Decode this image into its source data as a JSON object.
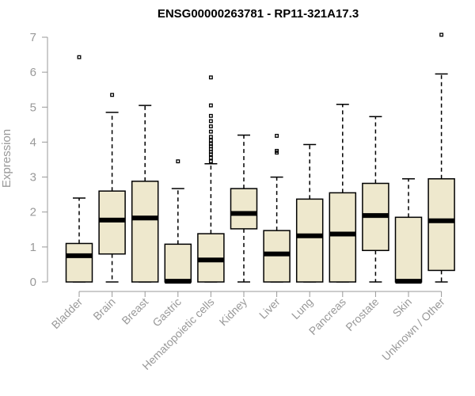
{
  "chart_data": {
    "type": "boxplot",
    "title": "ENSG00000263781 - RP11-321A17.3",
    "xlabel": "",
    "ylabel": "Expression",
    "ylim": [
      0,
      7
    ],
    "yticks": [
      0,
      1,
      2,
      3,
      4,
      5,
      6,
      7
    ],
    "colors": {
      "box_fill": "#EEE8CD",
      "axis": "#999999"
    },
    "categories": [
      "Bladder",
      "Brain",
      "Breast",
      "Gastric",
      "Hematopoietic cells",
      "Kidney",
      "Liver",
      "Lung",
      "Pancreas",
      "Prostate",
      "Skin",
      "Unknown / Other"
    ],
    "boxes": [
      {
        "label": "Bladder",
        "min": 0,
        "q1": 0,
        "median": 0.75,
        "q3": 1.1,
        "max": 2.4,
        "outliers": [
          6.43
        ]
      },
      {
        "label": "Brain",
        "min": 0,
        "q1": 0.8,
        "median": 1.77,
        "q3": 2.6,
        "max": 4.85,
        "outliers": [
          5.35
        ]
      },
      {
        "label": "Breast",
        "min": 0,
        "q1": 0,
        "median": 1.83,
        "q3": 2.88,
        "max": 5.05,
        "outliers": []
      },
      {
        "label": "Gastric",
        "min": 0,
        "q1": 0,
        "median": 0.02,
        "q3": 1.08,
        "max": 2.67,
        "outliers": [
          3.45
        ]
      },
      {
        "label": "Hematopoietic cells",
        "min": 0,
        "q1": 0,
        "median": 0.63,
        "q3": 1.38,
        "max": 3.38,
        "outliers": [
          3.45,
          3.55,
          3.65,
          3.72,
          3.8,
          3.88,
          3.95,
          4.05,
          4.15,
          4.3,
          4.45,
          4.6,
          4.75,
          5.05,
          5.85
        ]
      },
      {
        "label": "Kidney",
        "min": 0,
        "q1": 1.52,
        "median": 1.96,
        "q3": 2.67,
        "max": 4.2,
        "outliers": []
      },
      {
        "label": "Liver",
        "min": 0,
        "q1": 0,
        "median": 0.8,
        "q3": 1.47,
        "max": 3.0,
        "outliers": [
          3.7,
          3.75,
          4.18
        ]
      },
      {
        "label": "Lung",
        "min": 0,
        "q1": 0,
        "median": 1.32,
        "q3": 2.37,
        "max": 3.93,
        "outliers": []
      },
      {
        "label": "Pancreas",
        "min": 0,
        "q1": 0,
        "median": 1.37,
        "q3": 2.55,
        "max": 5.08,
        "outliers": []
      },
      {
        "label": "Prostate",
        "min": 0,
        "q1": 0.9,
        "median": 1.9,
        "q3": 2.82,
        "max": 4.73,
        "outliers": []
      },
      {
        "label": "Skin",
        "min": 0,
        "q1": 0,
        "median": 0.02,
        "q3": 1.85,
        "max": 2.95,
        "outliers": []
      },
      {
        "label": "Unknown / Other",
        "min": 0,
        "q1": 0.33,
        "median": 1.75,
        "q3": 2.95,
        "max": 5.95,
        "outliers": [
          7.07
        ]
      }
    ]
  }
}
